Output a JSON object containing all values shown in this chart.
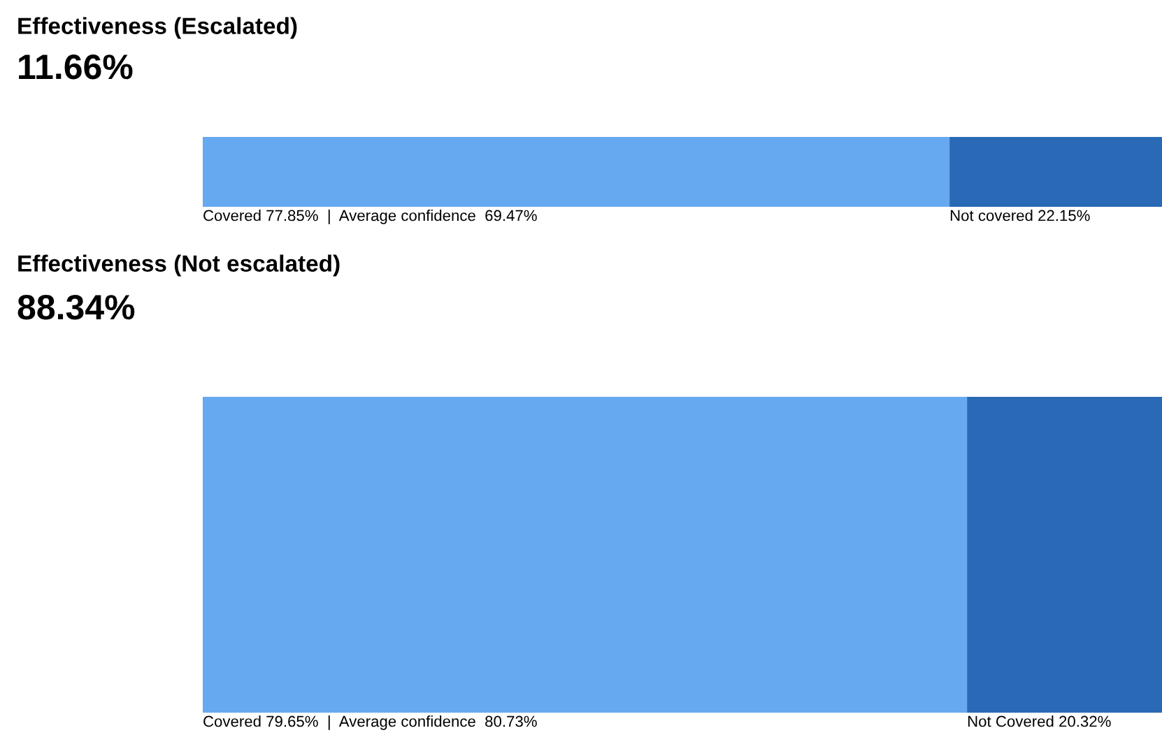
{
  "chart_data": [
    {
      "type": "bar",
      "orientation": "horizontal",
      "stacked": true,
      "title": "Effectiveness (Escalated)",
      "subtitle": "11.66%",
      "categories": [
        null
      ],
      "tick_labels": false,
      "series": [
        {
          "color": "#66a9f0",
          "values": [
            77.85
          ],
          "value_labels": [
            "Covered 77.85%  |  Average confidence  69.47%"
          ]
        },
        {
          "color": "#2a69b5",
          "values": [
            22.15
          ],
          "value_labels": [
            "Not covered 22.15%"
          ]
        }
      ]
    },
    {
      "type": "bar",
      "orientation": "horizontal",
      "stacked": true,
      "title": "Effectiveness (Not escalated)",
      "subtitle": "88.34%",
      "categories": [
        null
      ],
      "tick_labels": false,
      "series": [
        {
          "color": "#66a9f0",
          "values": [
            79.65
          ],
          "value_labels": [
            "Covered 79.65%  |  Average confidence  80.73%"
          ]
        },
        {
          "color": "#2a69b5",
          "values": [
            20.32
          ],
          "value_labels": [
            "Not Covered 20.32%"
          ]
        }
      ]
    }
  ]
}
